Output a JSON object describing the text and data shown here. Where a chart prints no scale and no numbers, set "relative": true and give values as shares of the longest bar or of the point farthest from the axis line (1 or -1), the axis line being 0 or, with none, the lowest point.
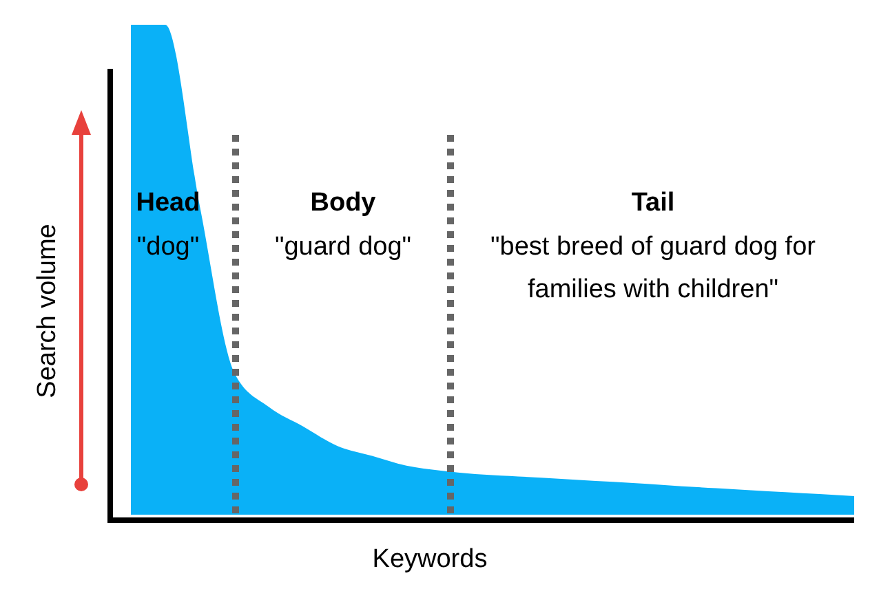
{
  "chart_data": {
    "type": "area",
    "relative": true,
    "color": "#0ab1f7",
    "xlabel": "Keywords",
    "ylabel": "Search volume",
    "categories": [
      null,
      null,
      null,
      null,
      null,
      null,
      null,
      null,
      null,
      null,
      null,
      null,
      null,
      null,
      null,
      null,
      null,
      null,
      null,
      null,
      null,
      null
    ],
    "values": [
      1,
      1,
      0.63,
      0.29,
      0.22,
      0.18,
      0.14,
      0.12,
      0.1,
      0.09,
      0.083,
      0.079,
      0.075,
      0.071,
      0.067,
      0.063,
      0.058,
      0.054,
      0.05,
      0.046,
      0.042,
      0.038
    ],
    "annotations": [
      "Head",
      "\"dog\"",
      "Body",
      "\"guard dog\"",
      "Tail",
      "\"best breed of guard dog for families with children\""
    ]
  }
}
